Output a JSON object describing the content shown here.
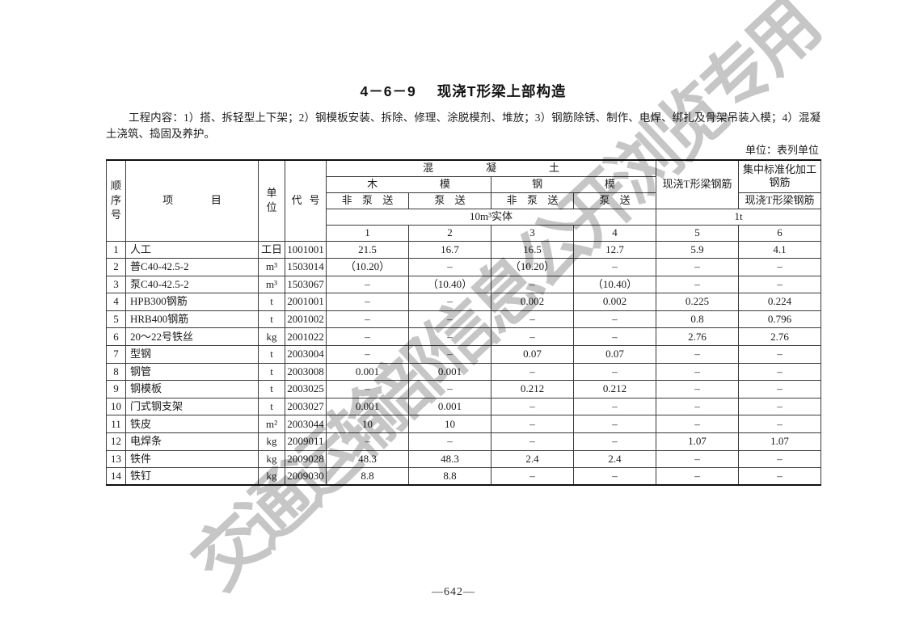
{
  "page": {
    "title_code": "4－6－9",
    "title_text": "现浇T形梁上部构造",
    "intro": "工程内容：1）搭、拆轻型上下架；2）钢模板安装、拆除、修理、涂脱模剂、堆放；3）钢筋除锈、制作、电焊、绑扎及骨架吊装入模；4）混凝土浇筑、捣固及养护。",
    "unit_note": "单位：表列单位",
    "page_number": "—642—",
    "watermark": "交通运输部信息公开浏览专用"
  },
  "table": {
    "header": {
      "seq": "顺序号",
      "item": "项目",
      "unit": "单位",
      "code": "代号",
      "concrete": "混凝土",
      "wood_form": "木模",
      "steel_form": "钢模",
      "non_pumped": "非泵送",
      "pumped": "泵送",
      "cast_t_beam_rebar": "现浇T形梁钢筋",
      "centralized": "集中标准化加工钢筋",
      "centralized_sub": "现浇T形梁钢筋",
      "spec_concrete": "10m³实体",
      "spec_rebar": "1t",
      "col_numbers": [
        "1",
        "2",
        "3",
        "4",
        "5",
        "6"
      ]
    },
    "rows": [
      {
        "seq": "1",
        "item": "人工",
        "unit": "工日",
        "code": "1001001",
        "values": [
          "21.5",
          "16.7",
          "16.5",
          "12.7",
          "5.9",
          "4.1"
        ]
      },
      {
        "seq": "2",
        "item": "普C40-42.5-2",
        "unit": "m³",
        "code": "1503014",
        "values": [
          "（10.20）",
          "–",
          "（10.20）",
          "–",
          "–",
          "–"
        ]
      },
      {
        "seq": "3",
        "item": "泵C40-42.5-2",
        "unit": "m³",
        "code": "1503067",
        "values": [
          "–",
          "（10.40）",
          "–",
          "（10.40）",
          "–",
          "–"
        ]
      },
      {
        "seq": "4",
        "item": "HPB300钢筋",
        "unit": "t",
        "code": "2001001",
        "values": [
          "–",
          "–",
          "0.002",
          "0.002",
          "0.225",
          "0.224"
        ]
      },
      {
        "seq": "5",
        "item": "HRB400钢筋",
        "unit": "t",
        "code": "2001002",
        "values": [
          "–",
          "–",
          "–",
          "–",
          "0.8",
          "0.796"
        ]
      },
      {
        "seq": "6",
        "item": "20～22号铁丝",
        "unit": "kg",
        "code": "2001022",
        "values": [
          "–",
          "–",
          "–",
          "–",
          "2.76",
          "2.76"
        ]
      },
      {
        "seq": "7",
        "item": "型钢",
        "unit": "t",
        "code": "2003004",
        "values": [
          "–",
          "–",
          "0.07",
          "0.07",
          "–",
          "–"
        ]
      },
      {
        "seq": "8",
        "item": "钢管",
        "unit": "t",
        "code": "2003008",
        "values": [
          "0.001",
          "0.001",
          "–",
          "–",
          "–",
          "–"
        ]
      },
      {
        "seq": "9",
        "item": "钢模板",
        "unit": "t",
        "code": "2003025",
        "values": [
          "–",
          "–",
          "0.212",
          "0.212",
          "–",
          "–"
        ]
      },
      {
        "seq": "10",
        "item": "门式钢支架",
        "unit": "t",
        "code": "2003027",
        "values": [
          "0.001",
          "0.001",
          "–",
          "–",
          "–",
          "–"
        ]
      },
      {
        "seq": "11",
        "item": "铁皮",
        "unit": "m²",
        "code": "2003044",
        "values": [
          "10",
          "10",
          "–",
          "–",
          "–",
          "–"
        ]
      },
      {
        "seq": "12",
        "item": "电焊条",
        "unit": "kg",
        "code": "2009011",
        "values": [
          "–",
          "–",
          "–",
          "–",
          "1.07",
          "1.07"
        ]
      },
      {
        "seq": "13",
        "item": "铁件",
        "unit": "kg",
        "code": "2009028",
        "values": [
          "48.3",
          "48.3",
          "2.4",
          "2.4",
          "–",
          "–"
        ]
      },
      {
        "seq": "14",
        "item": "铁钉",
        "unit": "kg",
        "code": "2009030",
        "values": [
          "8.8",
          "8.8",
          "–",
          "–",
          "–",
          "–"
        ]
      }
    ]
  }
}
